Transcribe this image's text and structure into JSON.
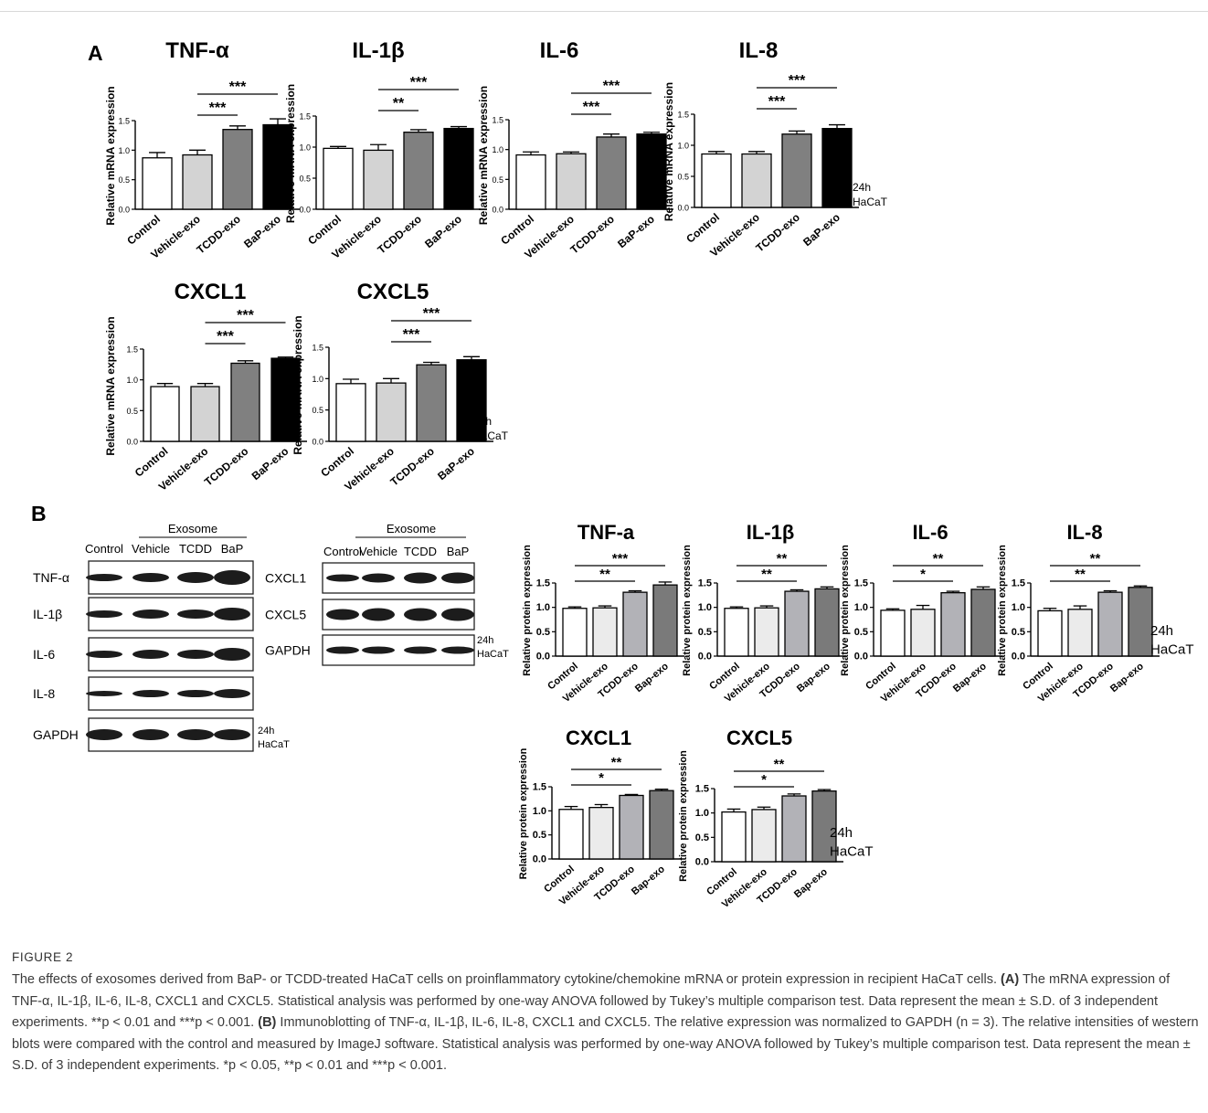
{
  "figure": {
    "panel_a": "A",
    "panel_b": "B",
    "time_label": "24h",
    "cell_label": "HaCaT"
  },
  "blots": {
    "exosome_label": "Exosome",
    "left_columns": [
      "Control",
      "Vehicle",
      "TCDD",
      "BaP"
    ],
    "left_rows": [
      "TNF-α",
      "IL-1β",
      "IL-6",
      "IL-8",
      "GAPDH"
    ],
    "right_columns": [
      "Control",
      "Vehicle",
      "TCDD",
      "BaP"
    ],
    "right_rows": [
      "CXCL1",
      "CXCL5",
      "GAPDH"
    ]
  },
  "chart_data": [
    {
      "type": "bar",
      "panel": "A",
      "title": "TNF-α",
      "ylabel": "Relative mRNA expression",
      "categories": [
        "Control",
        "Vehicle-exo",
        "TCDD-exo",
        "BaP-exo"
      ],
      "values": [
        0.87,
        0.92,
        1.35,
        1.43
      ],
      "errors": [
        0.09,
        0.08,
        0.06,
        0.1
      ],
      "ylim": [
        0,
        1.5
      ],
      "yticks": [
        "0.0",
        "0.5",
        "1.0",
        "1.5"
      ],
      "bar_colors": [
        "#ffffff",
        "#d3d3d3",
        "#808080",
        "#000000"
      ],
      "significance": [
        {
          "from": "Vehicle-exo",
          "to": "TCDD-exo",
          "label": "***"
        },
        {
          "from": "Vehicle-exo",
          "to": "BaP-exo",
          "label": "***"
        }
      ]
    },
    {
      "type": "bar",
      "panel": "A",
      "title": "IL-1β",
      "ylabel": "Relative mRNA expression",
      "categories": [
        "Control",
        "Vehicle-exo",
        "TCDD-exo",
        "BaP-exo"
      ],
      "values": [
        0.98,
        0.95,
        1.24,
        1.3
      ],
      "errors": [
        0.03,
        0.09,
        0.04,
        0.03
      ],
      "ylim": [
        0,
        1.5
      ],
      "yticks": [
        "0.0",
        "0.5",
        "1.0",
        "1.5"
      ],
      "bar_colors": [
        "#ffffff",
        "#d3d3d3",
        "#808080",
        "#000000"
      ],
      "significance": [
        {
          "from": "Vehicle-exo",
          "to": "TCDD-exo",
          "label": "**"
        },
        {
          "from": "Vehicle-exo",
          "to": "BaP-exo",
          "label": "***"
        }
      ]
    },
    {
      "type": "bar",
      "panel": "A",
      "title": "IL-6",
      "ylabel": "Relative mRNA expression",
      "categories": [
        "Control",
        "Vehicle-exo",
        "TCDD-exo",
        "BaP-exo"
      ],
      "values": [
        0.91,
        0.93,
        1.21,
        1.26
      ],
      "errors": [
        0.05,
        0.03,
        0.05,
        0.03
      ],
      "ylim": [
        0,
        1.5
      ],
      "yticks": [
        "0.0",
        "0.5",
        "1.0",
        "1.5"
      ],
      "bar_colors": [
        "#ffffff",
        "#d3d3d3",
        "#808080",
        "#000000"
      ],
      "significance": [
        {
          "from": "Vehicle-exo",
          "to": "TCDD-exo",
          "label": "***"
        },
        {
          "from": "Vehicle-exo",
          "to": "BaP-exo",
          "label": "***"
        }
      ]
    },
    {
      "type": "bar",
      "panel": "A",
      "title": "IL-8",
      "ylabel": "Relative mRNA expression",
      "categories": [
        "Control",
        "Vehicle-exo",
        "TCDD-exo",
        "BaP-exo"
      ],
      "values": [
        0.86,
        0.86,
        1.18,
        1.27
      ],
      "errors": [
        0.04,
        0.04,
        0.05,
        0.06
      ],
      "ylim": [
        0,
        1.5
      ],
      "yticks": [
        "0.0",
        "0.5",
        "1.0",
        "1.5"
      ],
      "bar_colors": [
        "#ffffff",
        "#d3d3d3",
        "#808080",
        "#000000"
      ],
      "significance": [
        {
          "from": "Vehicle-exo",
          "to": "TCDD-exo",
          "label": "***"
        },
        {
          "from": "Vehicle-exo",
          "to": "BaP-exo",
          "label": "***"
        }
      ]
    },
    {
      "type": "bar",
      "panel": "A",
      "title": "CXCL1",
      "ylabel": "Relative mRNA expression",
      "categories": [
        "Control",
        "Vehicle-exo",
        "TCDD-exo",
        "BaP-exo"
      ],
      "values": [
        0.89,
        0.89,
        1.27,
        1.35
      ],
      "errors": [
        0.05,
        0.05,
        0.04,
        0.02
      ],
      "ylim": [
        0,
        1.5
      ],
      "yticks": [
        "0.0",
        "0.5",
        "1.0",
        "1.5"
      ],
      "bar_colors": [
        "#ffffff",
        "#d3d3d3",
        "#808080",
        "#000000"
      ],
      "significance": [
        {
          "from": "Vehicle-exo",
          "to": "TCDD-exo",
          "label": "***"
        },
        {
          "from": "Vehicle-exo",
          "to": "BaP-exo",
          "label": "***"
        }
      ]
    },
    {
      "type": "bar",
      "panel": "A",
      "title": "CXCL5",
      "ylabel": "Relative mRNA expression",
      "categories": [
        "Control",
        "Vehicle-exo",
        "TCDD-exo",
        "BaP-exo"
      ],
      "values": [
        0.92,
        0.93,
        1.22,
        1.3
      ],
      "errors": [
        0.07,
        0.07,
        0.04,
        0.05
      ],
      "ylim": [
        0,
        1.5
      ],
      "yticks": [
        "0.0",
        "0.5",
        "1.0",
        "1.5"
      ],
      "bar_colors": [
        "#ffffff",
        "#d3d3d3",
        "#808080",
        "#000000"
      ],
      "significance": [
        {
          "from": "Vehicle-exo",
          "to": "TCDD-exo",
          "label": "***"
        },
        {
          "from": "Vehicle-exo",
          "to": "BaP-exo",
          "label": "***"
        }
      ]
    },
    {
      "type": "bar",
      "panel": "B",
      "title": "TNF-a",
      "ylabel": "Relative protein expression",
      "categories": [
        "Control",
        "Vehicle-exo",
        "TCDD-exo",
        "Bap-exo"
      ],
      "values": [
        0.98,
        0.99,
        1.31,
        1.46
      ],
      "errors": [
        0.03,
        0.04,
        0.03,
        0.06
      ],
      "ylim": [
        0,
        1.5
      ],
      "yticks": [
        "0.0",
        "0.5",
        "1.0",
        "1.5"
      ],
      "bar_colors": [
        "#ffffff",
        "#ebebeb",
        "#b2b2b7",
        "#7a7a7a"
      ],
      "significance": [
        {
          "from": "Control",
          "to": "TCDD-exo",
          "label": "**"
        },
        {
          "from": "Control",
          "to": "Bap-exo",
          "label": "***"
        }
      ]
    },
    {
      "type": "bar",
      "panel": "B",
      "title": "IL-1β",
      "ylabel": "Relative protein expression",
      "categories": [
        "Control",
        "Vehicle-exo",
        "TCDD-exo",
        "Bap-exo"
      ],
      "values": [
        0.98,
        0.99,
        1.33,
        1.38
      ],
      "errors": [
        0.03,
        0.04,
        0.03,
        0.04
      ],
      "ylim": [
        0,
        1.5
      ],
      "yticks": [
        "0.0",
        "0.5",
        "1.0",
        "1.5"
      ],
      "bar_colors": [
        "#ffffff",
        "#ebebeb",
        "#b2b2b7",
        "#7a7a7a"
      ],
      "significance": [
        {
          "from": "Control",
          "to": "TCDD-exo",
          "label": "**"
        },
        {
          "from": "Control",
          "to": "Bap-exo",
          "label": "**"
        }
      ]
    },
    {
      "type": "bar",
      "panel": "B",
      "title": "IL-6",
      "ylabel": "Relative protein expression",
      "categories": [
        "Control",
        "Vehicle-exo",
        "TCDD-exo",
        "Bap-exo"
      ],
      "values": [
        0.94,
        0.96,
        1.3,
        1.37
      ],
      "errors": [
        0.03,
        0.08,
        0.03,
        0.05
      ],
      "ylim": [
        0,
        1.5
      ],
      "yticks": [
        "0.0",
        "0.5",
        "1.0",
        "1.5"
      ],
      "bar_colors": [
        "#ffffff",
        "#ebebeb",
        "#b2b2b7",
        "#7a7a7a"
      ],
      "significance": [
        {
          "from": "Control",
          "to": "TCDD-exo",
          "label": "*"
        },
        {
          "from": "Control",
          "to": "Bap-exo",
          "label": "**"
        }
      ]
    },
    {
      "type": "bar",
      "panel": "B",
      "title": "IL-8",
      "ylabel": "Relative protein expression",
      "categories": [
        "Control",
        "Vehicle-exo",
        "TCDD-exo",
        "Bap-exo"
      ],
      "values": [
        0.93,
        0.96,
        1.31,
        1.41
      ],
      "errors": [
        0.05,
        0.07,
        0.03,
        0.03
      ],
      "ylim": [
        0,
        1.5
      ],
      "yticks": [
        "0.0",
        "0.5",
        "1.0",
        "1.5"
      ],
      "bar_colors": [
        "#ffffff",
        "#ebebeb",
        "#b2b2b7",
        "#7a7a7a"
      ],
      "significance": [
        {
          "from": "Control",
          "to": "TCDD-exo",
          "label": "**"
        },
        {
          "from": "Control",
          "to": "Bap-exo",
          "label": "**"
        }
      ]
    },
    {
      "type": "bar",
      "panel": "B",
      "title": "CXCL1",
      "ylabel": "Relative protein expression",
      "categories": [
        "Control",
        "Vehicle-exo",
        "TCDD-exo",
        "Bap-exo"
      ],
      "values": [
        1.03,
        1.07,
        1.32,
        1.42
      ],
      "errors": [
        0.06,
        0.06,
        0.02,
        0.03
      ],
      "ylim": [
        0,
        1.5
      ],
      "yticks": [
        "0.0",
        "0.5",
        "1.0",
        "1.5"
      ],
      "bar_colors": [
        "#ffffff",
        "#ebebeb",
        "#b2b2b7",
        "#7a7a7a"
      ],
      "significance": [
        {
          "from": "Control",
          "to": "TCDD-exo",
          "label": "*"
        },
        {
          "from": "Control",
          "to": "Bap-exo",
          "label": "**"
        }
      ]
    },
    {
      "type": "bar",
      "panel": "B",
      "title": "CXCL5",
      "ylabel": "Relative protein expression",
      "categories": [
        "Control",
        "Vehicle-exo",
        "TCDD-exo",
        "Bap-exo"
      ],
      "values": [
        1.02,
        1.07,
        1.35,
        1.45
      ],
      "errors": [
        0.06,
        0.05,
        0.04,
        0.03
      ],
      "ylim": [
        0,
        1.5
      ],
      "yticks": [
        "0.0",
        "0.5",
        "1.0",
        "1.5"
      ],
      "bar_colors": [
        "#ffffff",
        "#ebebeb",
        "#b2b2b7",
        "#7a7a7a"
      ],
      "significance": [
        {
          "from": "Control",
          "to": "TCDD-exo",
          "label": "*"
        },
        {
          "from": "Control",
          "to": "Bap-exo",
          "label": "**"
        }
      ]
    }
  ],
  "caption": {
    "label": "FIGURE 2",
    "text": "The effects of exosomes derived from BaP- or TCDD-treated HaCaT cells on proinflammatory cytokine/chemokine mRNA or protein expression in recipient HaCaT cells. (A) The mRNA expression of TNF-α, IL-1β, IL-6, IL-8, CXCL1 and CXCL5. Statistical analysis was performed by one-way ANOVA followed by Tukey’s multiple comparison test. Data represent the mean ± S.D. of 3 independent experiments. **p < 0.01 and ***p < 0.001. (B) Immunoblotting of TNF-α, IL-1β, IL-6, IL-8, CXCL1 and CXCL5. The relative expression was normalized to GAPDH (n = 3). The relative intensities of western blots were compared with the control and measured by ImageJ software. Statistical analysis was performed by one-way ANOVA followed by Tukey’s multiple comparison test. Data represent the mean ± S.D. of 3 independent experiments. *p < 0.05, **p < 0.01 and ***p < 0.001."
  }
}
